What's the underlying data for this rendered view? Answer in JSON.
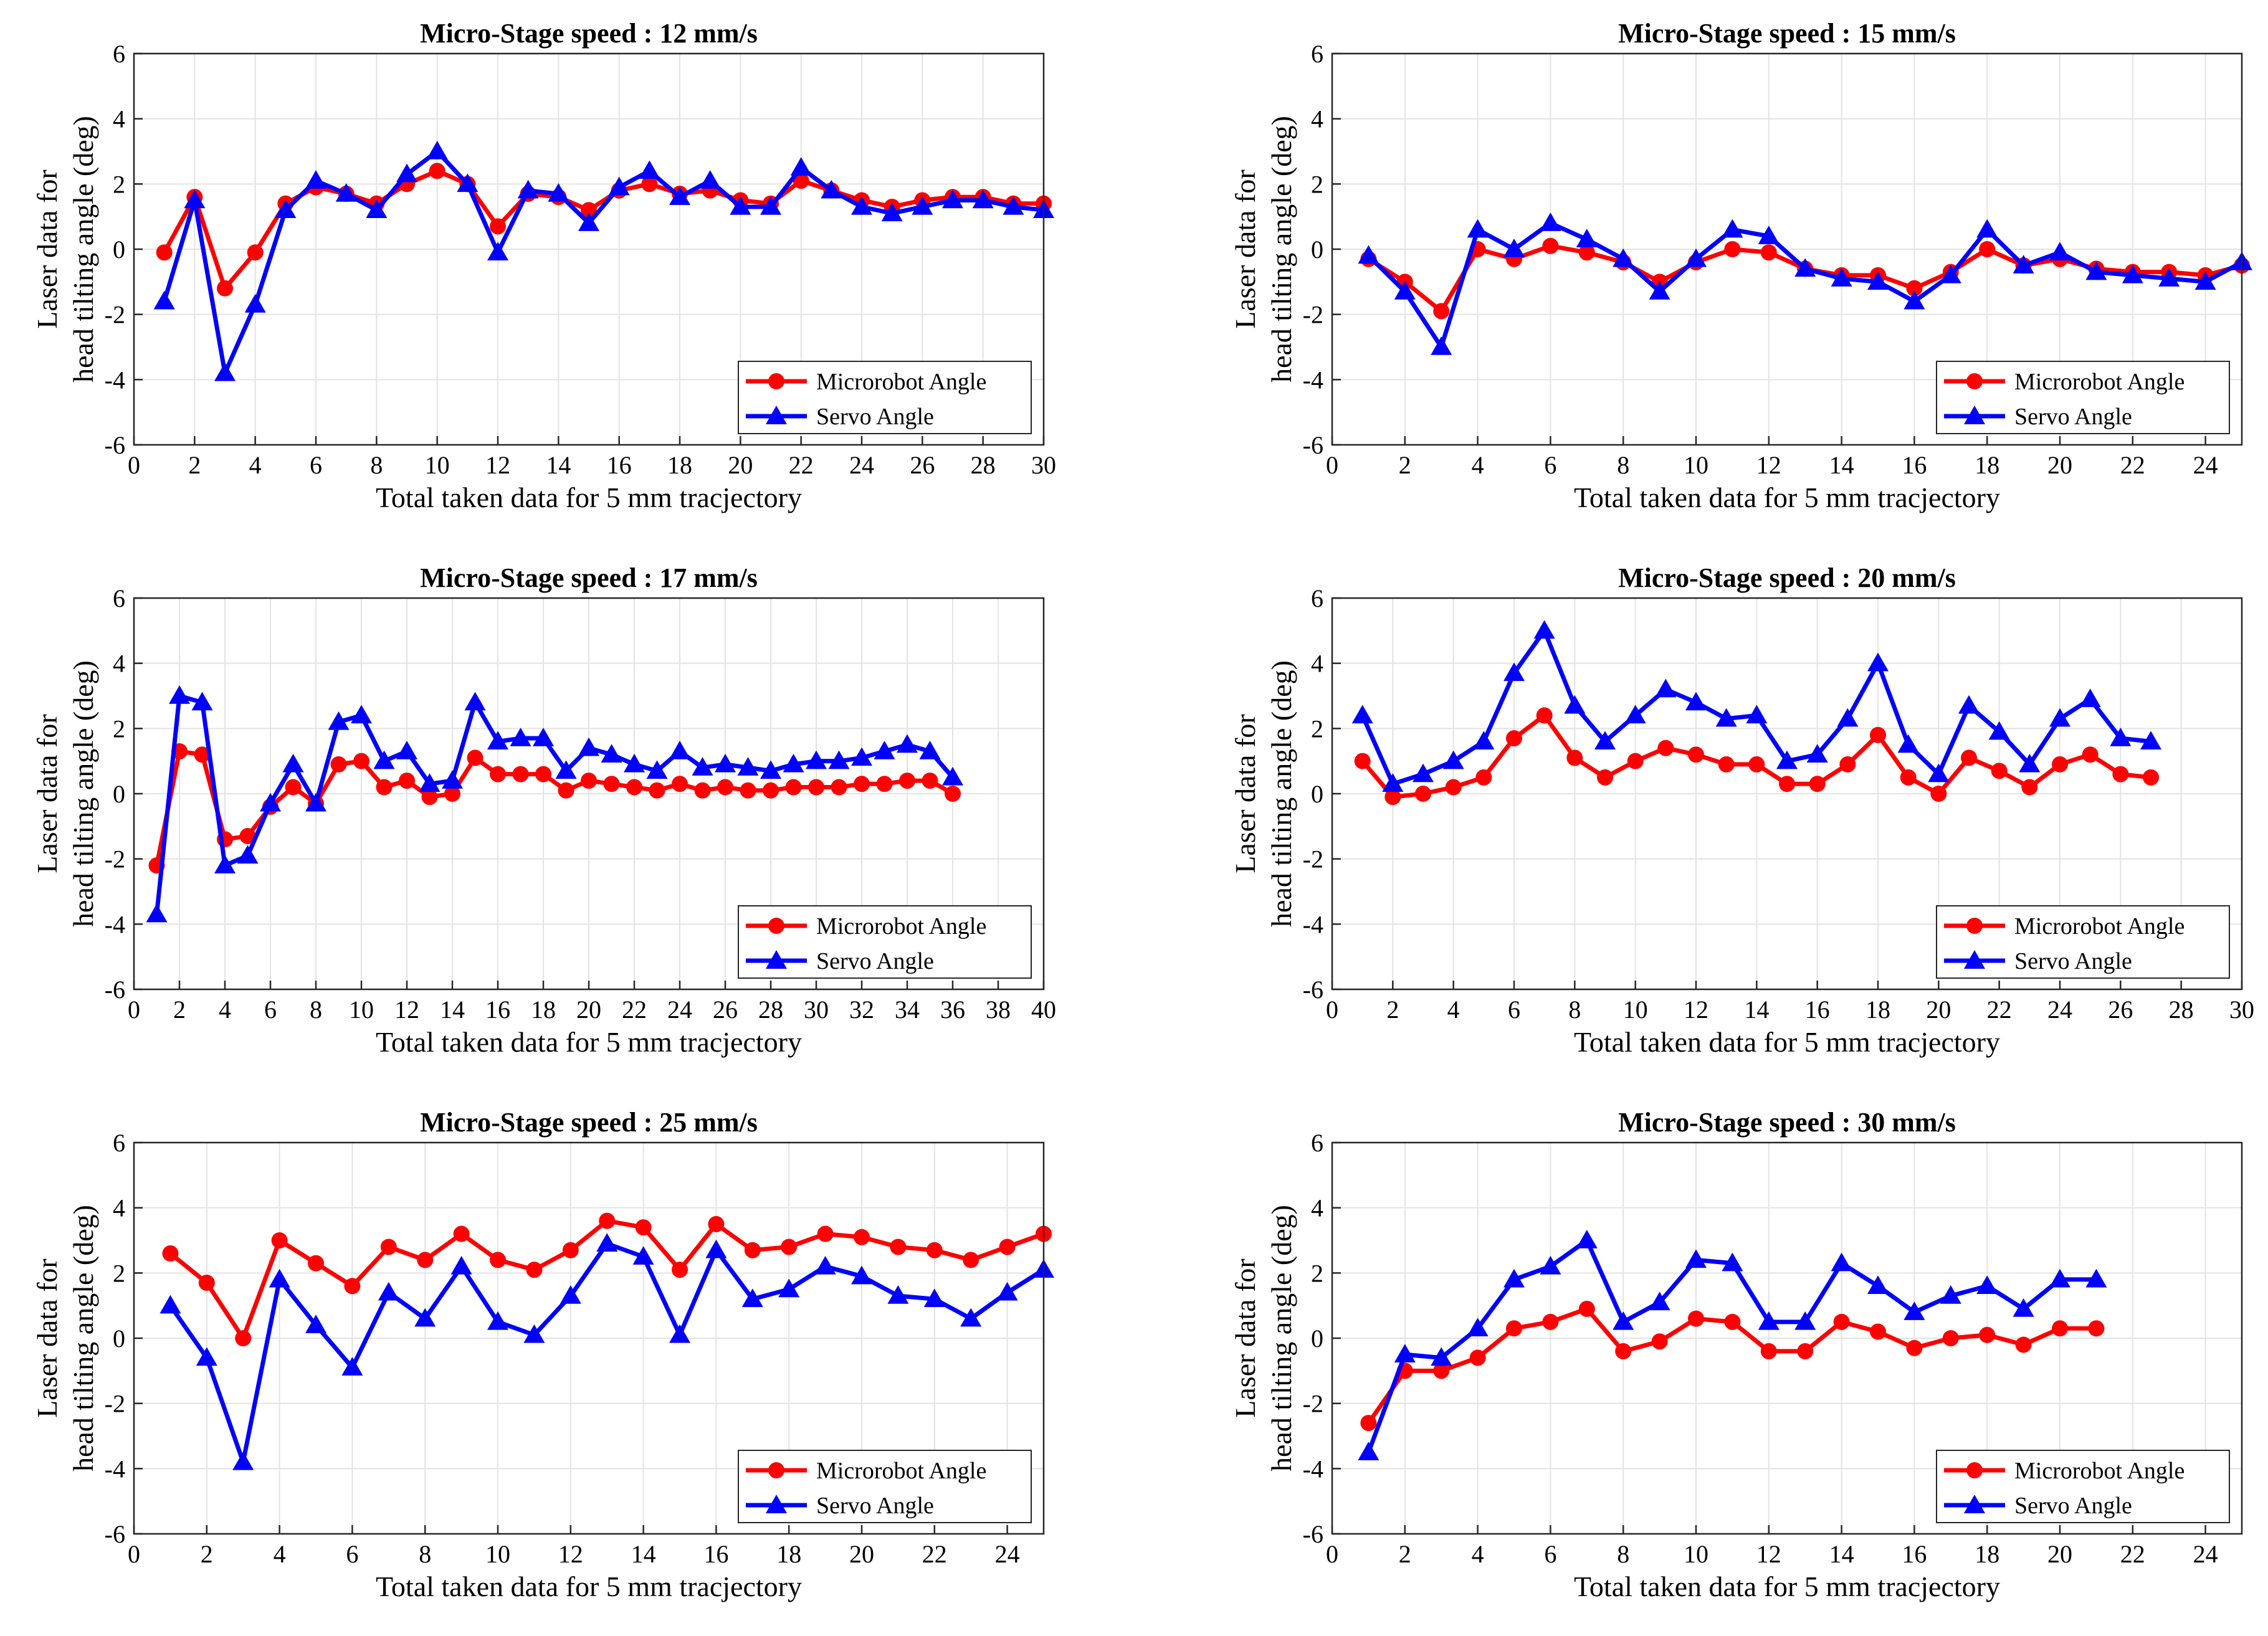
{
  "colors": {
    "microrobot": "#ff0000",
    "servo": "#0000ff",
    "grid": "#e3e3e3",
    "axis": "#262626"
  },
  "chart_data": [
    {
      "type": "line",
      "title": "Micro-Stage speed : 12 mm/s",
      "xlabel": "Total taken data for 5 mm tracjectory",
      "ylabel": [
        "Laser data for",
        "head tilting angle (deg)"
      ],
      "xlim": [
        0,
        30
      ],
      "ylim": [
        -6,
        6
      ],
      "xticks": [
        0,
        2,
        4,
        6,
        8,
        10,
        12,
        14,
        16,
        18,
        20,
        22,
        24,
        26,
        28,
        30
      ],
      "yticks": [
        -6,
        -4,
        -2,
        0,
        2,
        4,
        6
      ],
      "grid": true,
      "legend": "lower-right",
      "x": [
        1,
        2,
        3,
        4,
        5,
        6,
        7,
        8,
        9,
        10,
        11,
        12,
        13,
        14,
        15,
        16,
        17,
        18,
        19,
        20,
        21,
        22,
        23,
        24,
        25,
        26,
        27,
        28,
        29,
        30
      ],
      "series": [
        {
          "name": "Microrobot Angle",
          "marker": "circle",
          "values": [
            -0.1,
            1.6,
            -1.2,
            -0.1,
            1.4,
            1.9,
            1.7,
            1.4,
            2.0,
            2.4,
            2.0,
            0.7,
            1.7,
            1.6,
            1.2,
            1.8,
            2.0,
            1.7,
            1.8,
            1.5,
            1.4,
            2.1,
            1.8,
            1.5,
            1.3,
            1.5,
            1.6,
            1.6,
            1.4,
            1.4
          ]
        },
        {
          "name": "Servo Angle",
          "marker": "triangle",
          "values": [
            -1.6,
            1.5,
            -3.8,
            -1.7,
            1.2,
            2.1,
            1.7,
            1.2,
            2.3,
            3.0,
            2.0,
            -0.1,
            1.8,
            1.7,
            0.8,
            1.9,
            2.4,
            1.6,
            2.1,
            1.3,
            1.3,
            2.5,
            1.8,
            1.3,
            1.1,
            1.3,
            1.5,
            1.5,
            1.3,
            1.2
          ]
        }
      ]
    },
    {
      "type": "line",
      "title": "Micro-Stage speed : 15 mm/s",
      "xlabel": "Total taken data for 5 mm tracjectory",
      "ylabel": [
        "Laser data for",
        "head tilting angle (deg)"
      ],
      "xlim": [
        0,
        25
      ],
      "ylim": [
        -6,
        6
      ],
      "xticks": [
        0,
        2,
        4,
        6,
        8,
        10,
        12,
        14,
        16,
        18,
        20,
        22,
        24
      ],
      "yticks": [
        -6,
        -4,
        -2,
        0,
        2,
        4,
        6
      ],
      "grid": true,
      "legend": "lower-right",
      "x": [
        1,
        2,
        3,
        4,
        5,
        6,
        7,
        8,
        9,
        10,
        11,
        12,
        13,
        14,
        15,
        16,
        17,
        18,
        19,
        20,
        21,
        22,
        23,
        24,
        25
      ],
      "series": [
        {
          "name": "Microrobot Angle",
          "marker": "circle",
          "values": [
            -0.3,
            -1.0,
            -1.9,
            0.0,
            -0.3,
            0.1,
            -0.1,
            -0.4,
            -1.0,
            -0.4,
            0.0,
            -0.1,
            -0.6,
            -0.8,
            -0.8,
            -1.2,
            -0.7,
            0.0,
            -0.5,
            -0.3,
            -0.6,
            -0.7,
            -0.7,
            -0.8,
            -0.5
          ]
        },
        {
          "name": "Servo Angle",
          "marker": "triangle",
          "values": [
            -0.2,
            -1.3,
            -3.0,
            0.6,
            0.0,
            0.8,
            0.3,
            -0.3,
            -1.3,
            -0.3,
            0.6,
            0.4,
            -0.6,
            -0.9,
            -1.0,
            -1.6,
            -0.8,
            0.6,
            -0.5,
            -0.1,
            -0.7,
            -0.8,
            -0.9,
            -1.0,
            -0.4
          ]
        }
      ]
    },
    {
      "type": "line",
      "title": "Micro-Stage speed : 17 mm/s",
      "xlabel": "Total taken data for 5 mm tracjectory",
      "ylabel": [
        "Laser data for",
        "head tilting angle (deg)"
      ],
      "xlim": [
        0,
        40
      ],
      "ylim": [
        -6,
        6
      ],
      "xticks": [
        0,
        2,
        4,
        6,
        8,
        10,
        12,
        14,
        16,
        18,
        20,
        22,
        24,
        26,
        28,
        30,
        32,
        34,
        36,
        38,
        40
      ],
      "yticks": [
        -6,
        -4,
        -2,
        0,
        2,
        4,
        6
      ],
      "grid": true,
      "legend": "lower-right",
      "x": [
        1,
        2,
        3,
        4,
        5,
        6,
        7,
        8,
        9,
        10,
        11,
        12,
        13,
        14,
        15,
        16,
        17,
        18,
        19,
        20,
        21,
        22,
        23,
        24,
        25,
        26,
        27,
        28,
        29,
        30,
        31,
        32,
        33,
        34,
        35,
        36
      ],
      "series": [
        {
          "name": "Microrobot Angle",
          "marker": "circle",
          "values": [
            -2.2,
            1.3,
            1.2,
            -1.4,
            -1.3,
            -0.4,
            0.2,
            -0.3,
            0.9,
            1.0,
            0.2,
            0.4,
            -0.1,
            0.0,
            1.1,
            0.6,
            0.6,
            0.6,
            0.1,
            0.4,
            0.3,
            0.2,
            0.1,
            0.3,
            0.1,
            0.2,
            0.1,
            0.1,
            0.2,
            0.2,
            0.2,
            0.3,
            0.3,
            0.4,
            0.4,
            0.0
          ]
        },
        {
          "name": "Servo Angle",
          "marker": "triangle",
          "values": [
            -3.7,
            3.0,
            2.8,
            -2.2,
            -1.9,
            -0.3,
            0.9,
            -0.3,
            2.2,
            2.4,
            1.0,
            1.3,
            0.3,
            0.4,
            2.8,
            1.6,
            1.7,
            1.7,
            0.7,
            1.4,
            1.2,
            0.9,
            0.7,
            1.3,
            0.8,
            0.9,
            0.8,
            0.7,
            0.9,
            1.0,
            1.0,
            1.1,
            1.3,
            1.5,
            1.3,
            0.5
          ]
        }
      ]
    },
    {
      "type": "line",
      "title": "Micro-Stage speed : 20 mm/s",
      "xlabel": "Total taken data for 5 mm tracjectory",
      "ylabel": [
        "Laser data for",
        "head tilting angle (deg)"
      ],
      "xlim": [
        0,
        30
      ],
      "ylim": [
        -6,
        6
      ],
      "xticks": [
        0,
        2,
        4,
        6,
        8,
        10,
        12,
        14,
        16,
        18,
        20,
        22,
        24,
        26,
        28,
        30
      ],
      "yticks": [
        -6,
        -4,
        -2,
        0,
        2,
        4,
        6
      ],
      "grid": true,
      "legend": "lower-right",
      "x": [
        1,
        2,
        3,
        4,
        5,
        6,
        7,
        8,
        9,
        10,
        11,
        12,
        13,
        14,
        15,
        16,
        17,
        18,
        19,
        20,
        21,
        22,
        23,
        24,
        25,
        26,
        27
      ],
      "series": [
        {
          "name": "Microrobot Angle",
          "marker": "circle",
          "values": [
            1.0,
            -0.1,
            0.0,
            0.2,
            0.5,
            1.7,
            2.4,
            1.1,
            0.5,
            1.0,
            1.4,
            1.2,
            0.9,
            0.9,
            0.3,
            0.3,
            0.9,
            1.8,
            0.5,
            0.0,
            1.1,
            0.7,
            0.2,
            0.9,
            1.2,
            0.6,
            0.5
          ]
        },
        {
          "name": "Servo Angle",
          "marker": "triangle",
          "values": [
            2.4,
            0.3,
            0.6,
            1.0,
            1.6,
            3.7,
            5.0,
            2.7,
            1.6,
            2.4,
            3.2,
            2.8,
            2.3,
            2.4,
            1.0,
            1.2,
            2.3,
            4.0,
            1.5,
            0.6,
            2.7,
            1.9,
            0.9,
            2.3,
            2.9,
            1.7,
            1.6
          ]
        }
      ]
    },
    {
      "type": "line",
      "title": "Micro-Stage speed : 25 mm/s",
      "xlabel": "Total taken data for 5 mm tracjectory",
      "ylabel": [
        "Laser data for",
        "head tilting angle (deg)"
      ],
      "xlim": [
        0,
        25
      ],
      "ylim": [
        -6,
        6
      ],
      "xticks": [
        0,
        2,
        4,
        6,
        8,
        10,
        12,
        14,
        16,
        18,
        20,
        22,
        24
      ],
      "yticks": [
        -6,
        -4,
        -2,
        0,
        2,
        4,
        6
      ],
      "grid": true,
      "legend": "lower-right",
      "x": [
        1,
        2,
        3,
        4,
        5,
        6,
        7,
        8,
        9,
        10,
        11,
        12,
        13,
        14,
        15,
        16,
        17,
        18,
        19,
        20,
        21,
        22,
        23,
        24,
        25
      ],
      "series": [
        {
          "name": "Microrobot Angle",
          "marker": "circle",
          "values": [
            2.6,
            1.7,
            0.0,
            3.0,
            2.3,
            1.6,
            2.8,
            2.4,
            3.2,
            2.4,
            2.1,
            2.7,
            3.6,
            3.4,
            2.1,
            3.5,
            2.7,
            2.8,
            3.2,
            3.1,
            2.8,
            2.7,
            2.4,
            2.8,
            3.2
          ]
        },
        {
          "name": "Servo Angle",
          "marker": "triangle",
          "values": [
            1.0,
            -0.6,
            -3.8,
            1.8,
            0.4,
            -0.9,
            1.4,
            0.6,
            2.2,
            0.5,
            0.1,
            1.3,
            2.9,
            2.5,
            0.1,
            2.7,
            1.2,
            1.5,
            2.2,
            1.9,
            1.3,
            1.2,
            0.6,
            1.4,
            2.1
          ]
        }
      ]
    },
    {
      "type": "line",
      "title": "Micro-Stage speed : 30 mm/s",
      "xlabel": "Total taken data for 5 mm tracjectory",
      "ylabel": [
        "Laser data for",
        "head tilting angle (deg)"
      ],
      "xlim": [
        0,
        25
      ],
      "ylim": [
        -6,
        6
      ],
      "xticks": [
        0,
        2,
        4,
        6,
        8,
        10,
        12,
        14,
        16,
        18,
        20,
        22,
        24
      ],
      "yticks": [
        -6,
        -4,
        -2,
        0,
        2,
        4,
        6
      ],
      "grid": true,
      "legend": "lower-right",
      "x": [
        1,
        2,
        3,
        4,
        5,
        6,
        7,
        8,
        9,
        10,
        11,
        12,
        13,
        14,
        15,
        16,
        17,
        18,
        19,
        20,
        21
      ],
      "series": [
        {
          "name": "Microrobot Angle",
          "marker": "circle",
          "values": [
            -2.6,
            -1.0,
            -1.0,
            -0.6,
            0.3,
            0.5,
            0.9,
            -0.4,
            -0.1,
            0.6,
            0.5,
            -0.4,
            -0.4,
            0.5,
            0.2,
            -0.3,
            0.0,
            0.1,
            -0.2,
            0.3,
            0.3
          ]
        },
        {
          "name": "Servo Angle",
          "marker": "triangle",
          "values": [
            -3.5,
            -0.5,
            -0.6,
            0.3,
            1.8,
            2.2,
            3.0,
            0.5,
            1.1,
            2.4,
            2.3,
            0.5,
            0.5,
            2.3,
            1.6,
            0.8,
            1.3,
            1.6,
            0.9,
            1.8,
            1.8
          ]
        }
      ]
    }
  ]
}
